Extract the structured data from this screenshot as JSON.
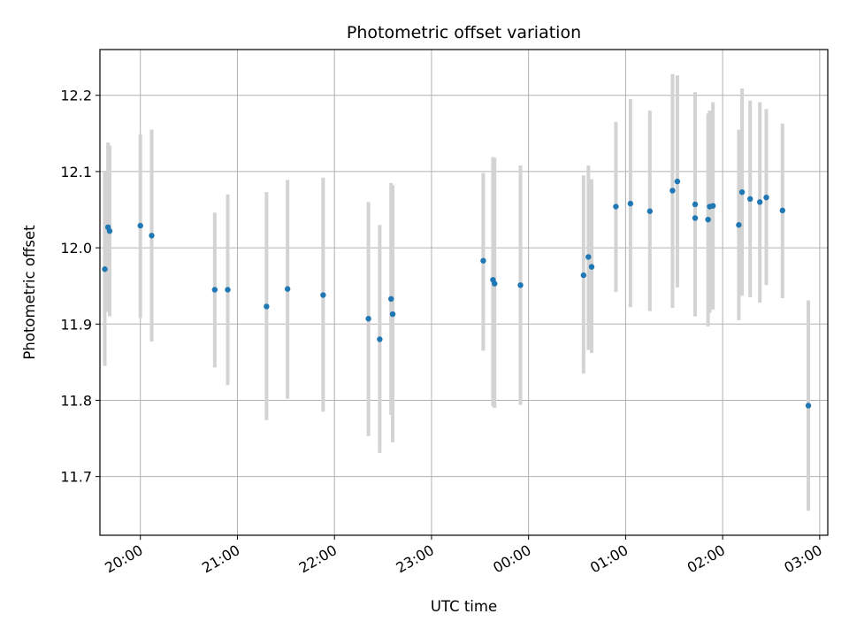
{
  "chart_data": {
    "type": "scatter",
    "title": "Photometric offset variation",
    "xlabel": "UTC time",
    "ylabel": "Photometric offset",
    "x_unit": "UTC time (hh:mm)",
    "xlim": [
      "19:35",
      "03:05"
    ],
    "ylim": [
      11.623,
      12.26
    ],
    "x_tick_labels": [
      "20:00",
      "21:00",
      "22:00",
      "23:00",
      "00:00",
      "01:00",
      "02:00",
      "03:00"
    ],
    "y_ticks": [
      11.7,
      11.8,
      11.9,
      12.0,
      12.1,
      12.2
    ],
    "y_tick_labels": [
      "11.7",
      "11.8",
      "11.9",
      "12.0",
      "12.1",
      "12.2"
    ],
    "grid": true,
    "legend": "none",
    "colors": {
      "points": "#1f77b4",
      "error_bars": "#d3d3d3",
      "grid": "#b0b0b0",
      "axes": "#000000"
    },
    "points": [
      {
        "x": "19:38",
        "y": 11.972,
        "ylow": 11.845,
        "yhigh": 12.099
      },
      {
        "x": "19:40",
        "y": 12.027,
        "ylow": 11.916,
        "yhigh": 12.138
      },
      {
        "x": "19:41",
        "y": 12.022,
        "ylow": 11.91,
        "yhigh": 12.134
      },
      {
        "x": "20:00",
        "y": 12.029,
        "ylow": 11.908,
        "yhigh": 12.149
      },
      {
        "x": "20:07",
        "y": 12.016,
        "ylow": 11.877,
        "yhigh": 12.155
      },
      {
        "x": "20:46",
        "y": 11.945,
        "ylow": 11.843,
        "yhigh": 12.046
      },
      {
        "x": "20:54",
        "y": 11.945,
        "ylow": 11.82,
        "yhigh": 12.07
      },
      {
        "x": "21:18",
        "y": 11.923,
        "ylow": 11.774,
        "yhigh": 12.073
      },
      {
        "x": "21:31",
        "y": 11.946,
        "ylow": 11.802,
        "yhigh": 12.089
      },
      {
        "x": "21:53",
        "y": 11.938,
        "ylow": 11.785,
        "yhigh": 12.092
      },
      {
        "x": "22:21",
        "y": 11.907,
        "ylow": 11.753,
        "yhigh": 12.06
      },
      {
        "x": "22:28",
        "y": 11.88,
        "ylow": 11.731,
        "yhigh": 12.03
      },
      {
        "x": "22:35",
        "y": 11.933,
        "ylow": 11.781,
        "yhigh": 12.085
      },
      {
        "x": "22:36",
        "y": 11.913,
        "ylow": 11.745,
        "yhigh": 12.082
      },
      {
        "x": "23:32",
        "y": 11.983,
        "ylow": 11.865,
        "yhigh": 12.098
      },
      {
        "x": "23:38",
        "y": 11.958,
        "ylow": 11.792,
        "yhigh": 12.119
      },
      {
        "x": "23:39",
        "y": 11.953,
        "ylow": 11.79,
        "yhigh": 12.118
      },
      {
        "x": "23:55",
        "y": 11.951,
        "ylow": 11.794,
        "yhigh": 12.108
      },
      {
        "x": "00:34",
        "y": 11.964,
        "ylow": 11.835,
        "yhigh": 12.095
      },
      {
        "x": "00:37",
        "y": 11.988,
        "ylow": 11.866,
        "yhigh": 12.108
      },
      {
        "x": "00:39",
        "y": 11.975,
        "ylow": 11.862,
        "yhigh": 12.09
      },
      {
        "x": "00:54",
        "y": 12.054,
        "ylow": 11.942,
        "yhigh": 12.165
      },
      {
        "x": "01:03",
        "y": 12.058,
        "ylow": 11.922,
        "yhigh": 12.195
      },
      {
        "x": "01:15",
        "y": 12.048,
        "ylow": 11.917,
        "yhigh": 12.18
      },
      {
        "x": "01:29",
        "y": 12.075,
        "ylow": 11.921,
        "yhigh": 12.228
      },
      {
        "x": "01:32",
        "y": 12.087,
        "ylow": 11.948,
        "yhigh": 12.226
      },
      {
        "x": "01:43",
        "y": 12.039,
        "ylow": 11.912,
        "yhigh": 12.178
      },
      {
        "x": "01:43",
        "y": 12.057,
        "ylow": 11.91,
        "yhigh": 12.204
      },
      {
        "x": "01:51",
        "y": 12.037,
        "ylow": 11.897,
        "yhigh": 12.176
      },
      {
        "x": "01:52",
        "y": 12.054,
        "ylow": 11.915,
        "yhigh": 12.18
      },
      {
        "x": "01:54",
        "y": 12.055,
        "ylow": 11.919,
        "yhigh": 12.191
      },
      {
        "x": "02:10",
        "y": 12.03,
        "ylow": 11.905,
        "yhigh": 12.155
      },
      {
        "x": "02:12",
        "y": 12.073,
        "ylow": 11.937,
        "yhigh": 12.209
      },
      {
        "x": "02:17",
        "y": 12.064,
        "ylow": 11.935,
        "yhigh": 12.193
      },
      {
        "x": "02:23",
        "y": 12.06,
        "ylow": 11.928,
        "yhigh": 12.191
      },
      {
        "x": "02:27",
        "y": 12.066,
        "ylow": 11.951,
        "yhigh": 12.182
      },
      {
        "x": "02:37",
        "y": 12.049,
        "ylow": 11.934,
        "yhigh": 12.163
      },
      {
        "x": "02:53",
        "y": 11.793,
        "ylow": 11.655,
        "yhigh": 11.931
      }
    ]
  }
}
